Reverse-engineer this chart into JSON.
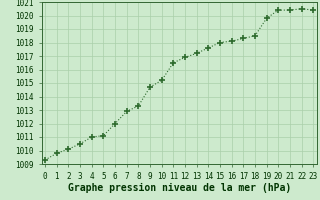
{
  "x": [
    0,
    1,
    2,
    3,
    4,
    5,
    6,
    7,
    8,
    9,
    10,
    11,
    12,
    13,
    14,
    15,
    16,
    17,
    18,
    19,
    20,
    21,
    22,
    23
  ],
  "y": [
    1009.3,
    1009.8,
    1010.1,
    1010.5,
    1011.0,
    1011.1,
    1012.0,
    1012.9,
    1013.3,
    1014.7,
    1015.2,
    1016.5,
    1016.9,
    1017.2,
    1017.6,
    1018.0,
    1018.1,
    1018.3,
    1018.5,
    1019.8,
    1020.4,
    1020.4,
    1020.5,
    1020.4
  ],
  "line_color": "#2d6a2d",
  "marker_color": "#2d6a2d",
  "bg_color": "#cdeacd",
  "grid_color": "#aacfaa",
  "title": "Graphe pression niveau de la mer (hPa)",
  "ylim": [
    1009,
    1021
  ],
  "xlim_min": -0.3,
  "xlim_max": 23.3,
  "yticks": [
    1009,
    1010,
    1011,
    1012,
    1013,
    1014,
    1015,
    1016,
    1017,
    1018,
    1019,
    1020,
    1021
  ],
  "xticks": [
    0,
    1,
    2,
    3,
    4,
    5,
    6,
    7,
    8,
    9,
    10,
    11,
    12,
    13,
    14,
    15,
    16,
    17,
    18,
    19,
    20,
    21,
    22,
    23
  ],
  "title_fontsize": 7.0,
  "tick_fontsize": 5.5,
  "title_color": "#003300",
  "tick_color": "#003300"
}
